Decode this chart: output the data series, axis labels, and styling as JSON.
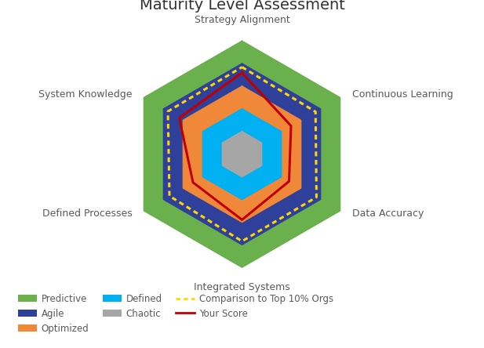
{
  "title": "Maturity Level Assessment",
  "title_fontsize": 14,
  "categories": [
    "Strategy Alignment",
    "Continuous Learning",
    "Data Accuracy",
    "Integrated Systems",
    "Defined Processes",
    "System Knowledge"
  ],
  "layers": {
    "Predictive": [
      5.0,
      5.0,
      5.0,
      5.0,
      5.0,
      5.0
    ],
    "Agile": [
      4.0,
      4.0,
      4.0,
      4.0,
      4.0,
      4.0
    ],
    "Optimized": [
      3.0,
      3.0,
      3.0,
      3.0,
      3.0,
      3.0
    ],
    "Defined": [
      2.0,
      2.0,
      2.0,
      2.0,
      2.0,
      2.0
    ],
    "Chaotic": [
      1.0,
      1.0,
      1.0,
      1.0,
      1.0,
      1.0
    ],
    "Comparison": [
      3.85,
      3.75,
      3.8,
      3.85,
      3.7,
      3.78
    ],
    "YourScore": [
      3.6,
      2.5,
      2.4,
      2.9,
      2.5,
      3.2
    ]
  },
  "colors": {
    "Predictive": "#6ab04c",
    "Agile": "#2e4099",
    "Optimized": "#f0883a",
    "Defined": "#00b0f0",
    "Chaotic": "#a6a6a6",
    "Comparison": "#ffd700",
    "YourScore": "#c00000"
  },
  "label_fontsize": 9,
  "label_color": "#595959",
  "background_color": "#ffffff"
}
